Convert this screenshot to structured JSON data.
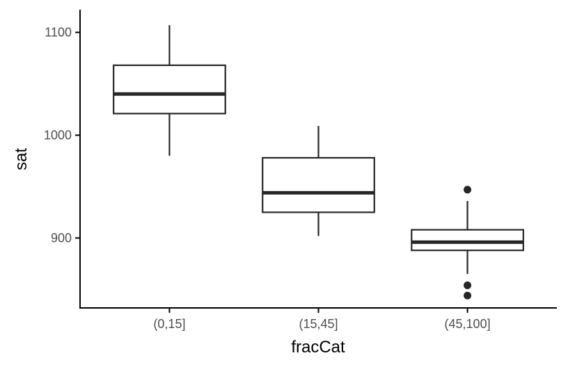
{
  "chart_data": {
    "type": "boxplot",
    "title": "",
    "xlabel": "fracCat",
    "ylabel": "sat",
    "ylim": [
      832,
      1122
    ],
    "y_ticks": [
      {
        "value": 900,
        "label": "900"
      },
      {
        "value": 1000,
        "label": "1000"
      },
      {
        "value": 1100,
        "label": "1100"
      }
    ],
    "categories": [
      "(0,15]",
      "(15,45]",
      "(45,100]"
    ],
    "boxes": [
      {
        "category": "(0,15]",
        "lower_whisker": 980,
        "q1": 1021,
        "median": 1040,
        "q3": 1068,
        "upper_whisker": 1107,
        "outliers": []
      },
      {
        "category": "(15,45]",
        "lower_whisker": 902,
        "q1": 925,
        "median": 944,
        "q3": 978,
        "upper_whisker": 1009,
        "outliers": []
      },
      {
        "category": "(45,100]",
        "lower_whisker": 865,
        "q1": 888,
        "median": 896,
        "q3": 908,
        "upper_whisker": 936,
        "outliers": [
          947,
          854,
          844
        ]
      }
    ],
    "grid": false,
    "legend": "none",
    "colors": {
      "box_line": "#262626",
      "box_fill": "#ffffff",
      "axis_line": "#000000",
      "tick_label": "#4d4d4d",
      "outlier": "#262626"
    }
  }
}
